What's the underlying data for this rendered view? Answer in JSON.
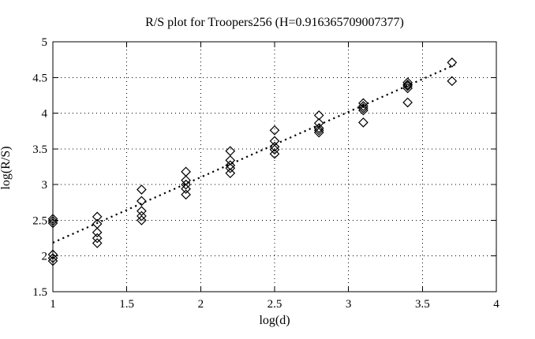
{
  "chart_data": {
    "type": "scatter",
    "title": "R/S plot for Troopers256 (H=0.916365709007377)",
    "xlabel": "log(d)",
    "ylabel": "log(R/S)",
    "xlim": [
      1,
      4
    ],
    "ylim": [
      1.5,
      5
    ],
    "xticks": [
      1,
      1.5,
      2,
      2.5,
      3,
      3.5,
      4
    ],
    "yticks": [
      1.5,
      2,
      2.5,
      3,
      3.5,
      4,
      4.5,
      5
    ],
    "grid": true,
    "grid_style": "dotted",
    "legend": "none",
    "marker": "open-diamond",
    "colors": {
      "foreground": "#000000",
      "background": "#ffffff"
    },
    "series": [
      {
        "name": "rs-points",
        "points": [
          [
            1.0,
            2.52
          ],
          [
            1.0,
            2.49
          ],
          [
            1.0,
            2.46
          ],
          [
            1.0,
            2.02
          ],
          [
            1.0,
            1.97
          ],
          [
            1.0,
            1.93
          ],
          [
            1.3,
            2.55
          ],
          [
            1.3,
            2.45
          ],
          [
            1.3,
            2.33
          ],
          [
            1.3,
            2.25
          ],
          [
            1.3,
            2.18
          ],
          [
            1.6,
            2.93
          ],
          [
            1.6,
            2.77
          ],
          [
            1.6,
            2.63
          ],
          [
            1.6,
            2.56
          ],
          [
            1.6,
            2.5
          ],
          [
            1.9,
            3.18
          ],
          [
            1.9,
            3.06
          ],
          [
            1.9,
            3.0
          ],
          [
            1.9,
            2.94
          ],
          [
            1.9,
            2.86
          ],
          [
            2.2,
            3.47
          ],
          [
            2.2,
            3.34
          ],
          [
            2.2,
            3.27
          ],
          [
            2.2,
            3.23
          ],
          [
            2.2,
            3.16
          ],
          [
            2.5,
            3.76
          ],
          [
            2.5,
            3.61
          ],
          [
            2.5,
            3.53
          ],
          [
            2.5,
            3.49
          ],
          [
            2.5,
            3.43
          ],
          [
            2.8,
            3.97
          ],
          [
            2.8,
            3.86
          ],
          [
            2.8,
            3.79
          ],
          [
            2.8,
            3.76
          ],
          [
            2.8,
            3.73
          ],
          [
            3.1,
            4.14
          ],
          [
            3.1,
            4.1
          ],
          [
            3.1,
            4.07
          ],
          [
            3.1,
            4.04
          ],
          [
            3.1,
            3.87
          ],
          [
            3.4,
            4.43
          ],
          [
            3.4,
            4.4
          ],
          [
            3.4,
            4.38
          ],
          [
            3.4,
            4.35
          ],
          [
            3.4,
            4.15
          ],
          [
            3.7,
            4.71
          ],
          [
            3.7,
            4.45
          ]
        ]
      }
    ],
    "fit_line": {
      "slope": 0.916365709007377,
      "intercept": 1.27,
      "x_range": [
        1.0,
        3.72
      ],
      "style": "dotted"
    }
  }
}
